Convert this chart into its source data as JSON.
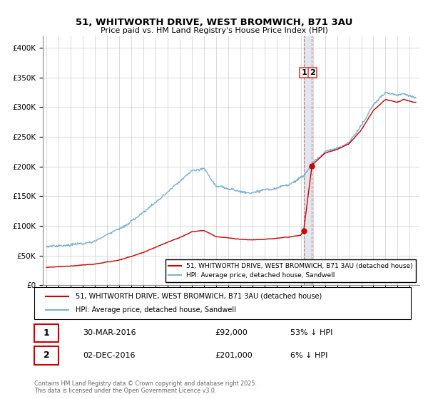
{
  "title_line1": "51, WHITWORTH DRIVE, WEST BROMWICH, B71 3AU",
  "title_line2": "Price paid vs. HM Land Registry's House Price Index (HPI)",
  "legend_label_red": "51, WHITWORTH DRIVE, WEST BROMWICH, B71 3AU (detached house)",
  "legend_label_blue": "HPI: Average price, detached house, Sandwell",
  "annotation1_date": "30-MAR-2016",
  "annotation1_price": "£92,000",
  "annotation1_hpi": "53% ↓ HPI",
  "annotation2_date": "02-DEC-2016",
  "annotation2_price": "£201,000",
  "annotation2_hpi": "6% ↓ HPI",
  "transaction1_year": 2016.24,
  "transaction1_price": 92000,
  "transaction2_year": 2016.92,
  "transaction2_price": 201000,
  "red_color": "#cc0000",
  "blue_color": "#7ab0d4",
  "shade_color": "#dde8f0",
  "annotation_line_color": "#dd4444",
  "ylim_min": 0,
  "ylim_max": 420000,
  "footer": "Contains HM Land Registry data © Crown copyright and database right 2025.\nThis data is licensed under the Open Government Licence v3.0."
}
